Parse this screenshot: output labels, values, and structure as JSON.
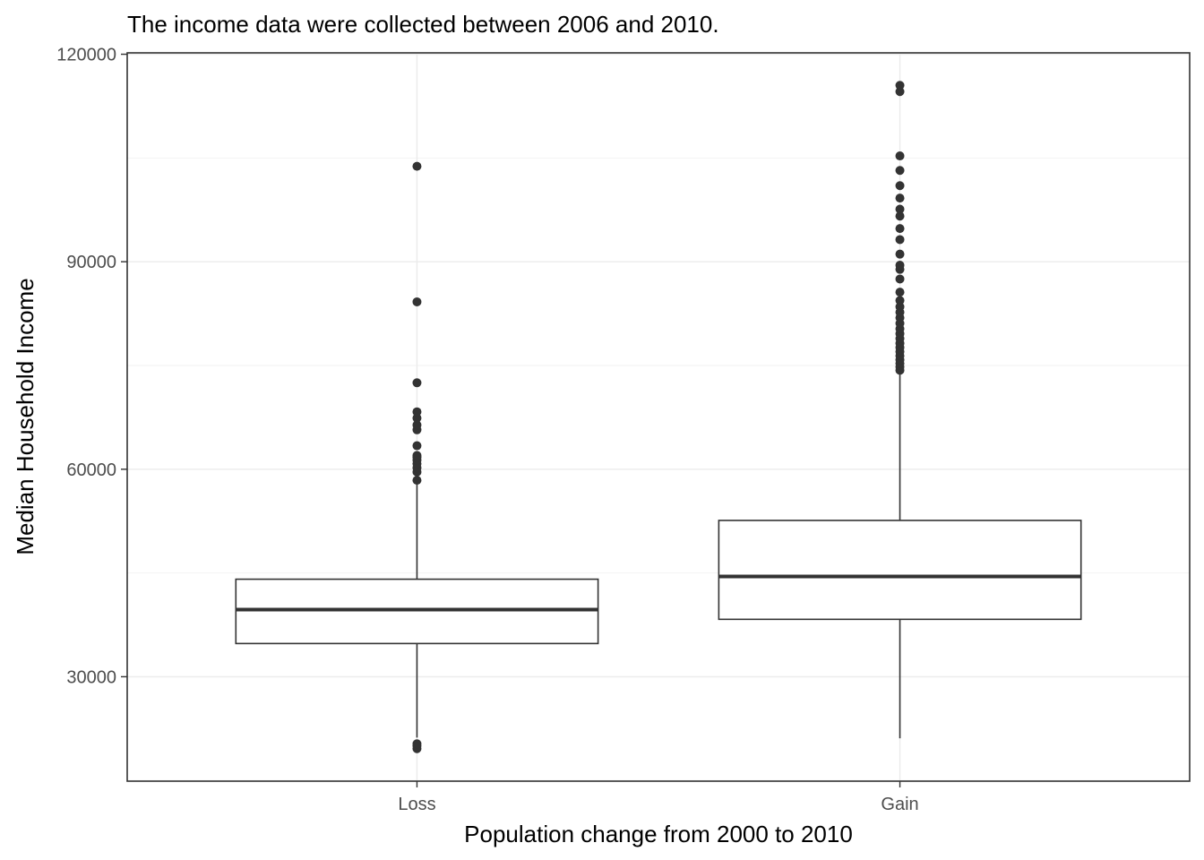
{
  "chart_data": {
    "type": "box",
    "title": "The income data were collected between 2006 and 2010.",
    "xlabel": "Population change from 2000 to 2010",
    "ylabel": "Median Household Income",
    "ylim": [
      14900,
      120200
    ],
    "yticks": [
      30000,
      60000,
      90000,
      120000
    ],
    "ytick_labels": [
      "30000",
      "60000",
      "90000",
      "120000"
    ],
    "grid": true,
    "categories": [
      "Loss",
      "Gain"
    ],
    "boxes": [
      {
        "category": "Loss",
        "whisker_low": 21200,
        "q1": 34800,
        "median": 39700,
        "q3": 44100,
        "whisker_high": 58100,
        "outliers": [
          19600,
          20000,
          20300,
          58400,
          59600,
          60200,
          60800,
          61300,
          61700,
          62000,
          63400,
          65700,
          66400,
          67400,
          68300,
          72500,
          84200,
          103800
        ]
      },
      {
        "category": "Gain",
        "whisker_low": 21100,
        "q1": 38300,
        "median": 44500,
        "q3": 52600,
        "whisker_high": 74000,
        "outliers": [
          74300,
          74800,
          75300,
          75800,
          76400,
          77000,
          77600,
          78200,
          78900,
          79600,
          80300,
          81100,
          81900,
          82700,
          83500,
          84400,
          85600,
          87500,
          88900,
          89500,
          91100,
          93200,
          94800,
          96600,
          97600,
          99200,
          101000,
          103200,
          105300,
          114600,
          115500
        ]
      }
    ],
    "colors": {
      "box_stroke": "#333333",
      "outlier": "#333333",
      "grid_major": "#ebebeb",
      "grid_minor": "#f2f2f2",
      "panel_border": "#333333"
    }
  }
}
